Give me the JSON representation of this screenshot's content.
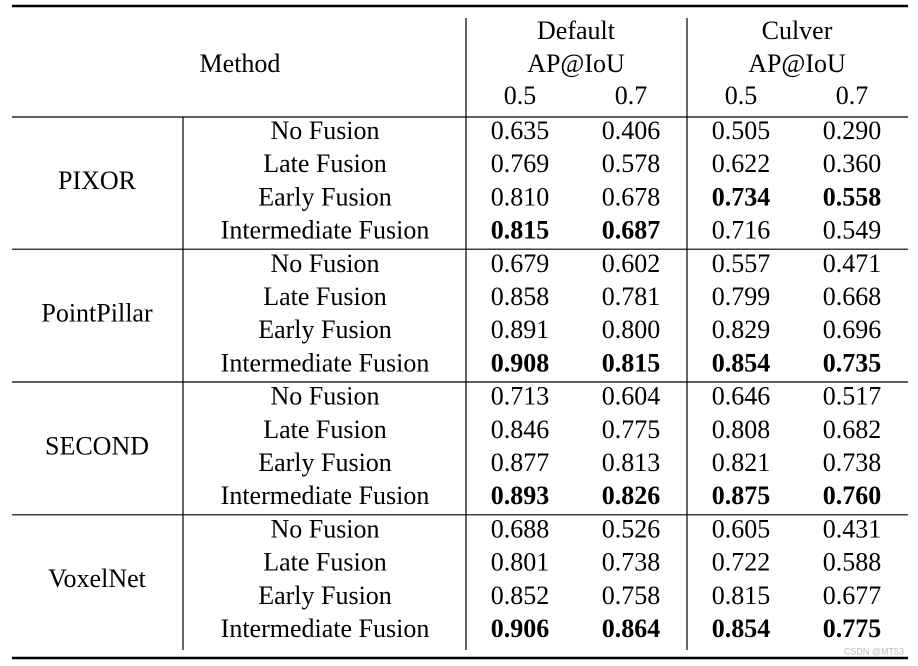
{
  "header": {
    "method": "Method",
    "groups": [
      {
        "name": "Default",
        "metric": "AP@IoU",
        "thresholds": [
          "0.5",
          "0.7"
        ]
      },
      {
        "name": "Culver",
        "metric": "AP@IoU",
        "thresholds": [
          "0.5",
          "0.7"
        ]
      }
    ]
  },
  "table": {
    "groups": [
      {
        "method": "PIXOR",
        "rows": [
          {
            "fusion": "No Fusion",
            "values": [
              "0.635",
              "0.406",
              "0.505",
              "0.290"
            ],
            "bold": [
              false,
              false,
              false,
              false
            ]
          },
          {
            "fusion": "Late Fusion",
            "values": [
              "0.769",
              "0.578",
              "0.622",
              "0.360"
            ],
            "bold": [
              false,
              false,
              false,
              false
            ]
          },
          {
            "fusion": "Early Fusion",
            "values": [
              "0.810",
              "0.678",
              "0.734",
              "0.558"
            ],
            "bold": [
              false,
              false,
              true,
              true
            ]
          },
          {
            "fusion": "Intermediate Fusion",
            "values": [
              "0.815",
              "0.687",
              "0.716",
              "0.549"
            ],
            "bold": [
              true,
              true,
              false,
              false
            ]
          }
        ]
      },
      {
        "method": "PointPillar",
        "rows": [
          {
            "fusion": "No Fusion",
            "values": [
              "0.679",
              "0.602",
              "0.557",
              "0.471"
            ],
            "bold": [
              false,
              false,
              false,
              false
            ]
          },
          {
            "fusion": "Late Fusion",
            "values": [
              "0.858",
              "0.781",
              "0.799",
              "0.668"
            ],
            "bold": [
              false,
              false,
              false,
              false
            ]
          },
          {
            "fusion": "Early Fusion",
            "values": [
              "0.891",
              "0.800",
              "0.829",
              "0.696"
            ],
            "bold": [
              false,
              false,
              false,
              false
            ]
          },
          {
            "fusion": "Intermediate Fusion",
            "values": [
              "0.908",
              "0.815",
              "0.854",
              "0.735"
            ],
            "bold": [
              true,
              true,
              true,
              true
            ]
          }
        ]
      },
      {
        "method": "SECOND",
        "rows": [
          {
            "fusion": "No Fusion",
            "values": [
              "0.713",
              "0.604",
              "0.646",
              "0.517"
            ],
            "bold": [
              false,
              false,
              false,
              false
            ]
          },
          {
            "fusion": "Late Fusion",
            "values": [
              "0.846",
              "0.775",
              "0.808",
              "0.682"
            ],
            "bold": [
              false,
              false,
              false,
              false
            ]
          },
          {
            "fusion": "Early Fusion",
            "values": [
              "0.877",
              "0.813",
              "0.821",
              "0.738"
            ],
            "bold": [
              false,
              false,
              false,
              false
            ]
          },
          {
            "fusion": "Intermediate Fusion",
            "values": [
              "0.893",
              "0.826",
              "0.875",
              "0.760"
            ],
            "bold": [
              true,
              true,
              true,
              true
            ]
          }
        ]
      },
      {
        "method": "VoxelNet",
        "rows": [
          {
            "fusion": "No Fusion",
            "values": [
              "0.688",
              "0.526",
              "0.605",
              "0.431"
            ],
            "bold": [
              false,
              false,
              false,
              false
            ]
          },
          {
            "fusion": "Late Fusion",
            "values": [
              "0.801",
              "0.738",
              "0.722",
              "0.588"
            ],
            "bold": [
              false,
              false,
              false,
              false
            ]
          },
          {
            "fusion": "Early Fusion",
            "values": [
              "0.852",
              "0.758",
              "0.815",
              "0.677"
            ],
            "bold": [
              false,
              false,
              false,
              false
            ]
          },
          {
            "fusion": "Intermediate Fusion",
            "values": [
              "0.906",
              "0.864",
              "0.854",
              "0.775"
            ],
            "bold": [
              true,
              true,
              true,
              true
            ]
          }
        ]
      }
    ]
  },
  "watermark": "CSDN @MT53"
}
